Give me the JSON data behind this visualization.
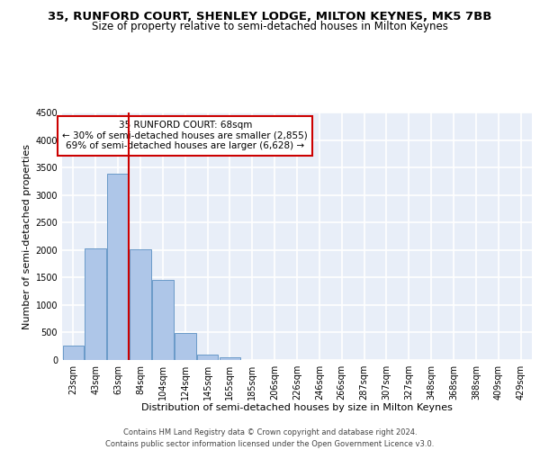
{
  "title1": "35, RUNFORD COURT, SHENLEY LODGE, MILTON KEYNES, MK5 7BB",
  "title2": "Size of property relative to semi-detached houses in Milton Keynes",
  "xlabel": "Distribution of semi-detached houses by size in Milton Keynes",
  "ylabel": "Number of semi-detached properties",
  "footer1": "Contains HM Land Registry data © Crown copyright and database right 2024.",
  "footer2": "Contains public sector information licensed under the Open Government Licence v3.0.",
  "bar_labels": [
    "23sqm",
    "43sqm",
    "63sqm",
    "84sqm",
    "104sqm",
    "124sqm",
    "145sqm",
    "165sqm",
    "185sqm",
    "206sqm",
    "226sqm",
    "246sqm",
    "266sqm",
    "287sqm",
    "307sqm",
    "327sqm",
    "348sqm",
    "368sqm",
    "388sqm",
    "409sqm",
    "429sqm"
  ],
  "bar_values": [
    270,
    2030,
    3380,
    2010,
    1460,
    490,
    95,
    50,
    0,
    0,
    0,
    0,
    0,
    0,
    0,
    0,
    0,
    0,
    0,
    0,
    0
  ],
  "bar_color": "#aec6e8",
  "bar_edge_color": "#5a8fc2",
  "vline_x_index": 2,
  "vline_color": "#cc0000",
  "annotation_text": "35 RUNFORD COURT: 68sqm\n← 30% of semi-detached houses are smaller (2,855)\n69% of semi-detached houses are larger (6,628) →",
  "annotation_box_color": "#ffffff",
  "annotation_box_edge": "#cc0000",
  "ylim": [
    0,
    4500
  ],
  "yticks": [
    0,
    500,
    1000,
    1500,
    2000,
    2500,
    3000,
    3500,
    4000,
    4500
  ],
  "background_color": "#e8eef8",
  "grid_color": "#ffffff",
  "title1_fontsize": 9.5,
  "title2_fontsize": 8.5,
  "axis_label_fontsize": 8,
  "tick_fontsize": 7,
  "footer_fontsize": 6,
  "annot_fontsize": 7.5
}
